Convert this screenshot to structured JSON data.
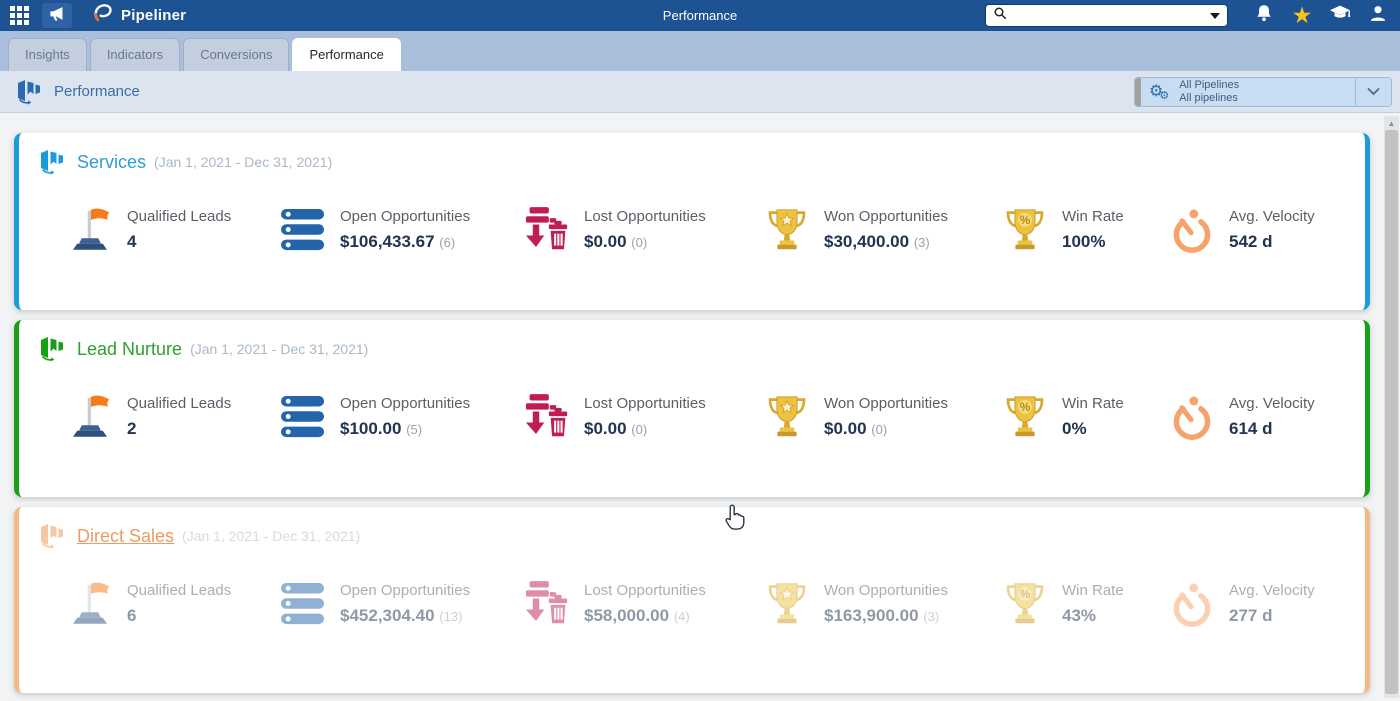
{
  "topbar": {
    "app_name": "Pipeliner",
    "page_title": "Performance",
    "search_value": ""
  },
  "tabs": [
    {
      "label": "Insights",
      "active": false
    },
    {
      "label": "Indicators",
      "active": false
    },
    {
      "label": "Conversions",
      "active": false
    },
    {
      "label": "Performance",
      "active": true
    }
  ],
  "breadcrumb": {
    "title": "Performance"
  },
  "pipeline_selector": {
    "line1": "All Pipelines",
    "line2": "All pipelines"
  },
  "colors": {
    "topbar_bg": "#1d5293",
    "services_accent": "#1b9cd8",
    "lead_nurture_accent": "#18a018",
    "direct_sales_accent": "#f2b98b",
    "lost_color": "#c01d57",
    "velocity_color": "#f6a269",
    "trophy_gold": "#edc23f",
    "star_gold": "#f6c31d"
  },
  "cards": [
    {
      "name": "Services",
      "date_range": "(Jan 1, 2021 - Dec 31, 2021)",
      "accent": "#1b9cd8",
      "title_color": "#2e9bd6",
      "icon_color": "#1b9cd8",
      "faded": false,
      "title_underline": false,
      "metrics": [
        {
          "icon": "flag-icon",
          "label": "Qualified Leads",
          "value": "4",
          "count": ""
        },
        {
          "icon": "opportunities-list-icon",
          "label": "Open Opportunities",
          "value": "$106,433.67",
          "count": "(6)"
        },
        {
          "icon": "lost-trash-icon",
          "label": "Lost Opportunities",
          "value": "$0.00",
          "count": "(0)"
        },
        {
          "icon": "trophy-star-icon",
          "label": "Won Opportunities",
          "value": "$30,400.00",
          "count": "(3)"
        },
        {
          "icon": "trophy-percent-icon",
          "label": "Win Rate",
          "value": "100%",
          "count": ""
        },
        {
          "icon": "stopwatch-icon",
          "label": "Avg. Velocity",
          "value": "542 d",
          "count": ""
        }
      ]
    },
    {
      "name": "Lead Nurture",
      "date_range": "(Jan 1, 2021 - Dec 31, 2021)",
      "accent": "#18a018",
      "title_color": "#2da02d",
      "icon_color": "#18a018",
      "faded": false,
      "title_underline": false,
      "metrics": [
        {
          "icon": "flag-icon",
          "label": "Qualified Leads",
          "value": "2",
          "count": ""
        },
        {
          "icon": "opportunities-list-icon",
          "label": "Open Opportunities",
          "value": "$100.00",
          "count": "(5)"
        },
        {
          "icon": "lost-trash-icon",
          "label": "Lost Opportunities",
          "value": "$0.00",
          "count": "(0)"
        },
        {
          "icon": "trophy-star-icon",
          "label": "Won Opportunities",
          "value": "$0.00",
          "count": "(0)"
        },
        {
          "icon": "trophy-percent-icon",
          "label": "Win Rate",
          "value": "0%",
          "count": ""
        },
        {
          "icon": "stopwatch-icon",
          "label": "Avg. Velocity",
          "value": "614 d",
          "count": ""
        }
      ]
    },
    {
      "name": "Direct Sales",
      "date_range": "(Jan 1, 2021 - Dec 31, 2021)",
      "accent": "#f2b98b",
      "title_color": "#ec9a66",
      "icon_color": "#f2a368",
      "faded": true,
      "title_underline": true,
      "metrics": [
        {
          "icon": "flag-icon",
          "label": "Qualified Leads",
          "value": "6",
          "count": ""
        },
        {
          "icon": "opportunities-list-icon",
          "label": "Open Opportunities",
          "value": "$452,304.40",
          "count": "(13)"
        },
        {
          "icon": "lost-trash-icon",
          "label": "Lost Opportunities",
          "value": "$58,000.00",
          "count": "(4)"
        },
        {
          "icon": "trophy-star-icon",
          "label": "Won Opportunities",
          "value": "$163,900.00",
          "count": "(3)"
        },
        {
          "icon": "trophy-percent-icon",
          "label": "Win Rate",
          "value": "43%",
          "count": ""
        },
        {
          "icon": "stopwatch-icon",
          "label": "Avg. Velocity",
          "value": "277 d",
          "count": ""
        }
      ]
    }
  ]
}
